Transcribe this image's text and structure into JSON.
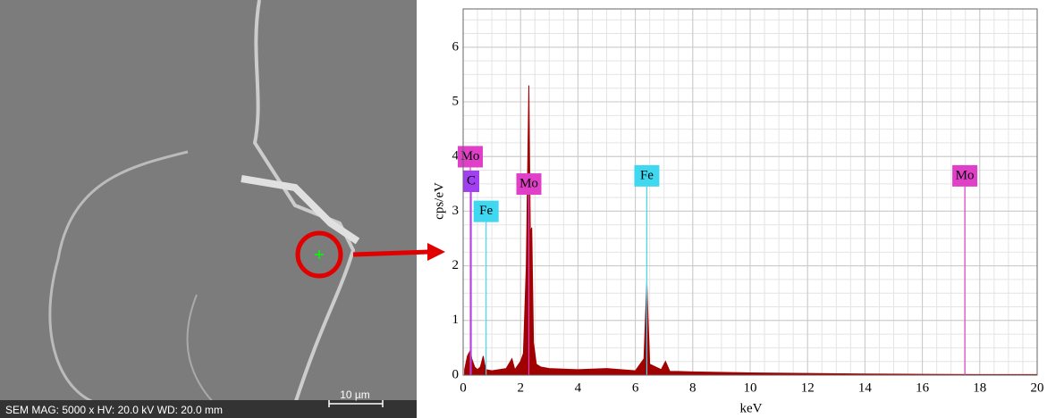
{
  "image": {
    "caption": "SEM  MAG: 5000 x  HV: 20.0 kV  WD: 20.0 mm",
    "scale_bar": "10 µm"
  },
  "chart_data": {
    "type": "area",
    "x_label": "keV",
    "y_label": "cps/eV",
    "color": "#a00000",
    "xlim": [
      0,
      20
    ],
    "ylim": [
      0,
      6.7
    ],
    "xticks": [
      0,
      2,
      4,
      6,
      8,
      10,
      12,
      14,
      16,
      18,
      20
    ],
    "yticks": [
      0,
      1,
      2,
      3,
      4,
      5,
      6
    ],
    "grid": true,
    "minor_step": {
      "x": 0.5,
      "y": 0.25
    },
    "x": [
      0.05,
      0.15,
      0.25,
      0.3,
      0.4,
      0.5,
      0.6,
      0.7,
      0.75,
      0.8,
      1.0,
      1.5,
      1.7,
      1.8,
      2.0,
      2.1,
      2.2,
      2.29,
      2.34,
      2.39,
      2.45,
      2.55,
      2.7,
      3.0,
      4.0,
      5.0,
      6.0,
      6.3,
      6.4,
      6.5,
      6.9,
      7.05,
      7.2,
      8.0,
      10.0,
      12.0,
      14.0,
      16.0,
      18.0,
      20.0
    ],
    "values": [
      0.1,
      0.35,
      0.45,
      0.3,
      0.15,
      0.1,
      0.15,
      0.35,
      0.2,
      0.1,
      0.08,
      0.12,
      0.3,
      0.1,
      0.25,
      0.4,
      2.0,
      5.3,
      2.6,
      2.7,
      0.6,
      0.2,
      0.15,
      0.12,
      0.1,
      0.12,
      0.08,
      0.3,
      1.7,
      0.2,
      0.1,
      0.25,
      0.07,
      0.06,
      0.04,
      0.03,
      0.02,
      0.015,
      0.01,
      0.01
    ],
    "markers": [
      {
        "label": "Mo",
        "x": 0.25,
        "y": 3.8,
        "color": "#e040c8"
      },
      {
        "label": "C",
        "x": 0.28,
        "y": 3.35,
        "color": "#a040f0"
      },
      {
        "label": "Fe",
        "x": 0.8,
        "y": 2.8,
        "color": "#40d8f0"
      },
      {
        "label": "Mo",
        "x": 2.29,
        "y": 3.3,
        "color": "#e040c8"
      },
      {
        "label": "Fe",
        "x": 6.4,
        "y": 3.45,
        "color": "#40d8f0"
      },
      {
        "label": "Mo",
        "x": 17.48,
        "y": 3.45,
        "color": "#e040c8"
      }
    ]
  }
}
